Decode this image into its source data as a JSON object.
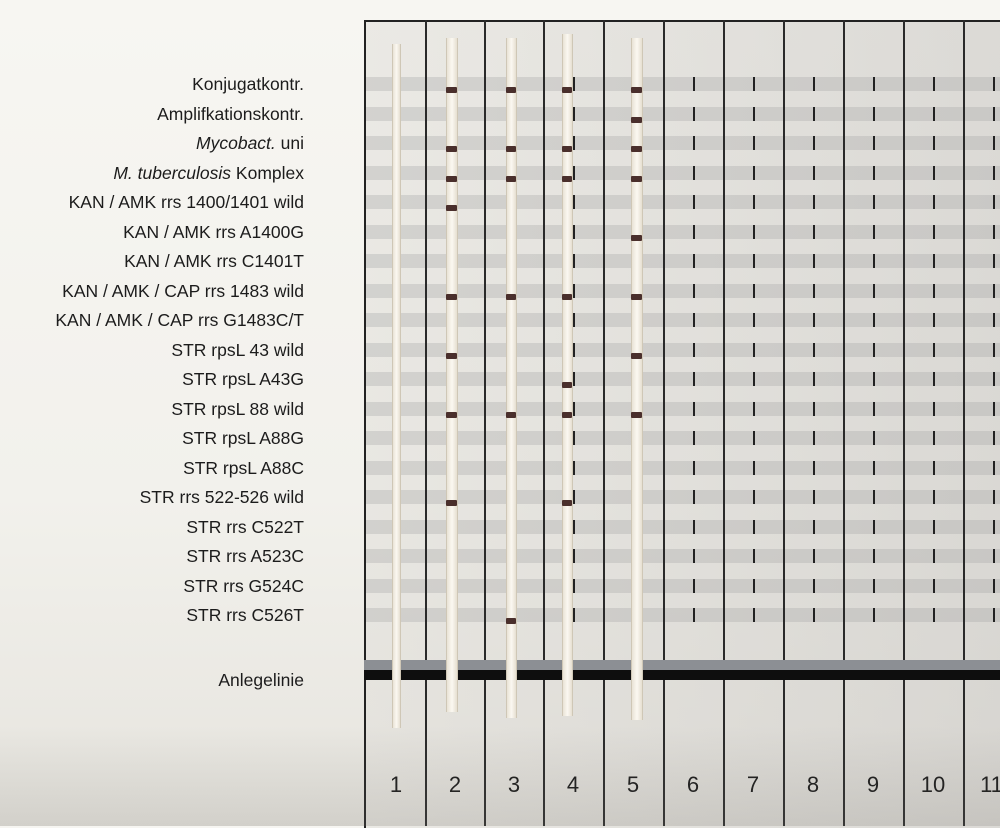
{
  "labels": [
    "Konjugatkontr.",
    "Amplifkationskontr.",
    "uni",
    "Komplex",
    "KAN / AMK rrs 1400/1401 wild",
    "KAN / AMK rrs A1400G",
    "KAN / AMK rrs C1401T",
    "KAN / AMK / CAP rrs 1483 wild",
    "KAN / AMK / CAP rrs G1483C/T",
    "STR rpsL 43 wild",
    "STR rpsL A43G",
    "STR rpsL 88 wild",
    "STR rpsL A88G",
    "STR rpsL A88C",
    "STR rrs 522-526 wild",
    "STR rrs C522T",
    "STR rrs A523C",
    "STR rrs G524C",
    "STR rrs C526T"
  ],
  "italic": {
    "mycobact": "Mycobact.",
    "mtb": "M. tuberculosis"
  },
  "baseline_label": "Anlegelinie",
  "lane_numbers": [
    "1",
    "2",
    "3",
    "4",
    "5",
    "6",
    "7",
    "8",
    "9",
    "10",
    "11"
  ],
  "colors": {
    "band_mark": "#4a2f2c",
    "template_line": "#2a2a2a",
    "baseline": "#0e0e0e"
  },
  "strips": [
    {
      "lane": "1",
      "positive_rows": []
    },
    {
      "lane": "2",
      "positive_rows": [
        0,
        2,
        3,
        4,
        7,
        9,
        11,
        14
      ]
    },
    {
      "lane": "3",
      "positive_rows": [
        0,
        2,
        3,
        7,
        11,
        18
      ]
    },
    {
      "lane": "4",
      "positive_rows": [
        0,
        2,
        3,
        7,
        10,
        11,
        14
      ]
    },
    {
      "lane": "5",
      "positive_rows": [
        0,
        1,
        2,
        3,
        5,
        7,
        9,
        11
      ]
    }
  ]
}
